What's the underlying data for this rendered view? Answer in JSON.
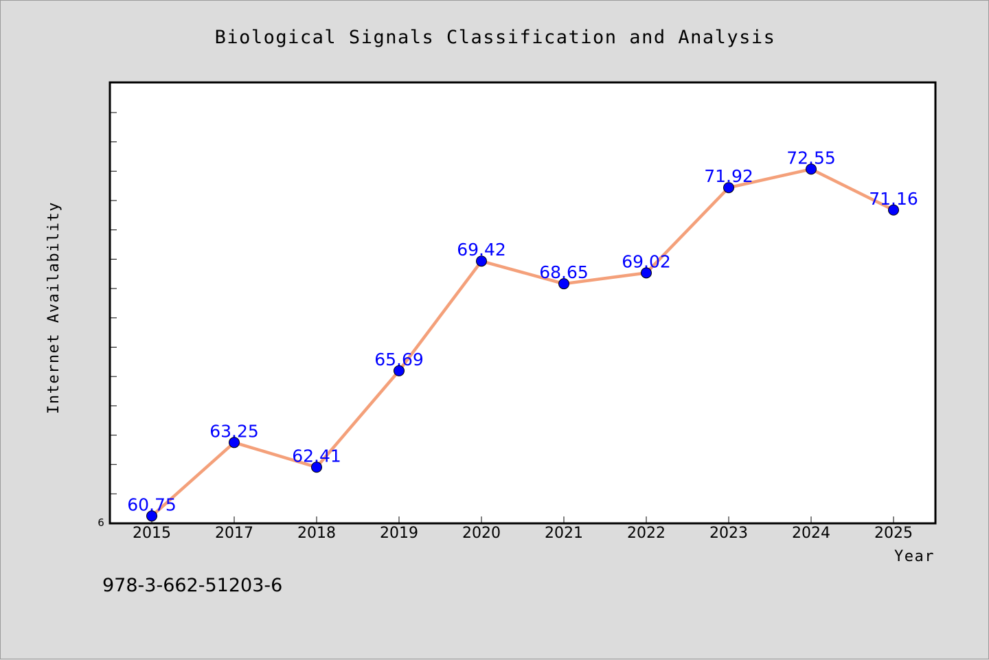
{
  "chart_data": {
    "type": "line",
    "title": "Biological Signals Classification and Analysis",
    "xlabel": "Year",
    "ylabel": "Internet Availability",
    "categories": [
      "2015",
      "2017",
      "2018",
      "2019",
      "2020",
      "2021",
      "2022",
      "2023",
      "2024",
      "2025"
    ],
    "series": [
      {
        "values": [
          60.75,
          63.25,
          62.41,
          65.69,
          69.42,
          68.65,
          69.02,
          71.92,
          72.55,
          71.16
        ],
        "labels": [
          "60.75",
          "63.25",
          "62.41",
          "65.69",
          "69.42",
          "68.65",
          "69.02",
          "71.92",
          "72.55",
          "71.16"
        ],
        "line_color": "#f4a07a",
        "marker_color": "#0000ff"
      }
    ],
    "ylim": [
      60.5,
      75.5
    ],
    "y_tick_label": "6",
    "grid": false,
    "legend": "none"
  },
  "footer": {
    "isbn": "978-3-662-51203-6"
  }
}
